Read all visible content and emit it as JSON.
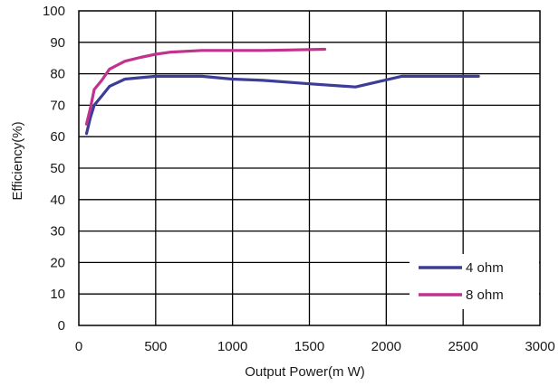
{
  "chart_data": {
    "type": "line",
    "title": "",
    "xlabel": "Output Power(m W)",
    "ylabel": "Efficiency(%)",
    "xlim": [
      0,
      3000
    ],
    "ylim": [
      0,
      100
    ],
    "x_ticks": [
      0,
      500,
      1000,
      1500,
      2000,
      2500,
      3000
    ],
    "y_ticks": [
      0,
      10,
      20,
      30,
      40,
      50,
      60,
      70,
      80,
      90,
      100
    ],
    "grid": true,
    "legend_position": "bottom-right",
    "series": [
      {
        "name": "4 ohm",
        "color": "#3b3d96",
        "points": [
          [
            50,
            61
          ],
          [
            75,
            66
          ],
          [
            100,
            70
          ],
          [
            150,
            73
          ],
          [
            200,
            76
          ],
          [
            300,
            78.3
          ],
          [
            500,
            79.2
          ],
          [
            800,
            79.2
          ],
          [
            1000,
            78.3
          ],
          [
            1200,
            77.9
          ],
          [
            1500,
            76.8
          ],
          [
            1800,
            75.8
          ],
          [
            2100,
            79.2
          ],
          [
            2600,
            79.2
          ]
        ]
      },
      {
        "name": "8 ohm",
        "color": "#c1328f",
        "points": [
          [
            50,
            64
          ],
          [
            75,
            69
          ],
          [
            100,
            75
          ],
          [
            150,
            78
          ],
          [
            200,
            81.5
          ],
          [
            300,
            84
          ],
          [
            400,
            85.2
          ],
          [
            500,
            86.2
          ],
          [
            600,
            86.9
          ],
          [
            800,
            87.4
          ],
          [
            1000,
            87.4
          ],
          [
            1200,
            87.4
          ],
          [
            1400,
            87.6
          ],
          [
            1600,
            87.8
          ]
        ]
      }
    ]
  }
}
